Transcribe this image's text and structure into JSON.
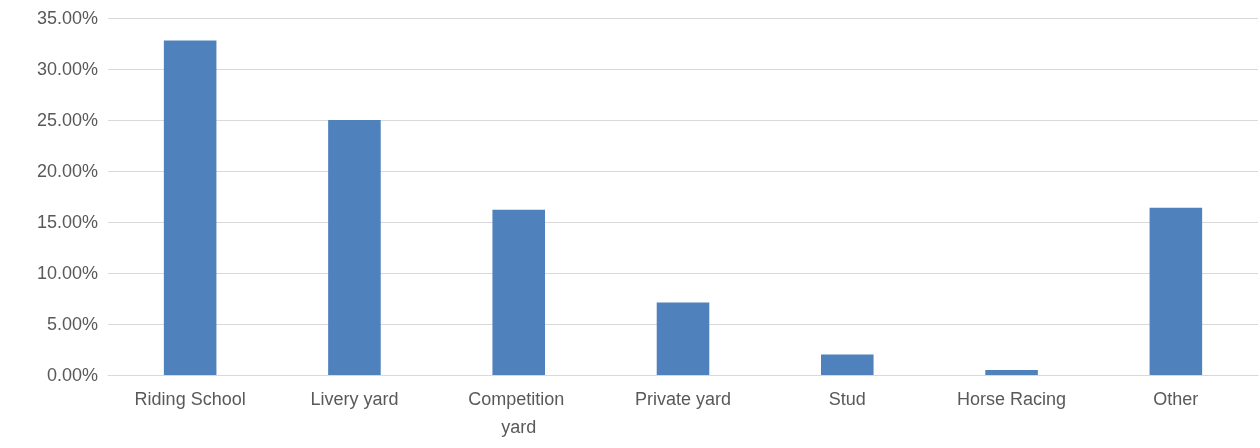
{
  "chart_data": {
    "type": "bar",
    "categories": [
      "Riding School",
      "Livery yard",
      "Competition yard",
      "Private yard",
      "Stud",
      "Horse Racing",
      "Other"
    ],
    "values": [
      32.8,
      25.0,
      16.2,
      7.1,
      2.0,
      0.5,
      16.4
    ],
    "color": "#4f81bd",
    "ylim": [
      0,
      35
    ],
    "yticks": [
      {
        "value": 0,
        "label": "0.00%"
      },
      {
        "value": 5,
        "label": "5.00%"
      },
      {
        "value": 10,
        "label": "10.00%"
      },
      {
        "value": 15,
        "label": "15.00%"
      },
      {
        "value": 20,
        "label": "20.00%"
      },
      {
        "value": 25,
        "label": "25.00%"
      },
      {
        "value": 30,
        "label": "30.00%"
      },
      {
        "value": 35,
        "label": "35.00%"
      }
    ],
    "grid": "y"
  }
}
